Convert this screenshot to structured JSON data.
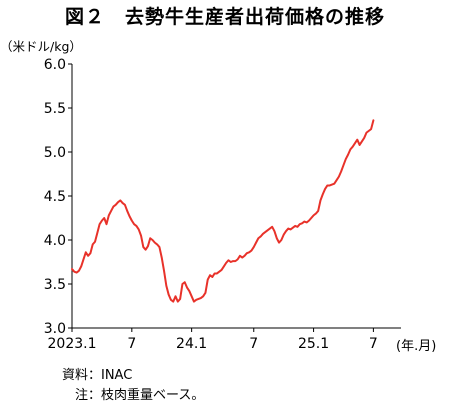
{
  "title": "図２　去勢牛生産者出荷価格の推移",
  "unit_label": "（米ドル/kg）",
  "x_unit_label": "(年.月)",
  "notes": [
    "資料：INAC",
    "　注：枝肉重量ベース。"
  ],
  "colors": {
    "line": "#e8322a",
    "axis": "#000000"
  },
  "chart_data": {
    "type": "line",
    "title": "図２　去勢牛生産者出荷価格の推移",
    "ylabel": "（米ドル/kg）",
    "xlabel": "(年.月)",
    "ylim": [
      3.0,
      6.0
    ],
    "xlim": [
      0,
      143
    ],
    "yticks": [
      3.0,
      3.5,
      4.0,
      4.5,
      5.0,
      5.5,
      6.0
    ],
    "ytick_labels": [
      "3.0",
      "3.5",
      "4.0",
      "4.5",
      "5.0",
      "5.5",
      "6.0"
    ],
    "xticks": [
      0,
      26,
      52,
      79,
      105,
      131
    ],
    "xtick_labels": [
      "2023.1",
      "7",
      "24.1",
      "7",
      "25.1",
      "7"
    ],
    "grid": false,
    "legend": "none",
    "series": [
      {
        "values": [
          3.67,
          3.64,
          3.63,
          3.65,
          3.7,
          3.78,
          3.86,
          3.82,
          3.85,
          3.95,
          3.98,
          4.08,
          4.18,
          4.22,
          4.25,
          4.18,
          4.28,
          4.33,
          4.38,
          4.4,
          4.43,
          4.45,
          4.42,
          4.4,
          4.33,
          4.27,
          4.22,
          4.18,
          4.16,
          4.12,
          4.05,
          3.92,
          3.89,
          3.93,
          4.02,
          4.0,
          3.97,
          3.95,
          3.92,
          3.8,
          3.65,
          3.48,
          3.38,
          3.32,
          3.3,
          3.36,
          3.3,
          3.33,
          3.5,
          3.52,
          3.46,
          3.42,
          3.36,
          3.3,
          3.32,
          3.33,
          3.34,
          3.36,
          3.4,
          3.55,
          3.6,
          3.58,
          3.62,
          3.62,
          3.64,
          3.66,
          3.7,
          3.74,
          3.77,
          3.75,
          3.76,
          3.76,
          3.78,
          3.82,
          3.8,
          3.82,
          3.85,
          3.86,
          3.88,
          3.92,
          3.97,
          4.02,
          4.04,
          4.07,
          4.09,
          4.11,
          4.13,
          4.15,
          4.1,
          4.02,
          3.97,
          4.0,
          4.06,
          4.1,
          4.13,
          4.12,
          4.14,
          4.16,
          4.15,
          4.18,
          4.19,
          4.21,
          4.2,
          4.22,
          4.25,
          4.28,
          4.3,
          4.33,
          4.45,
          4.52,
          4.58,
          4.62,
          4.62,
          4.63,
          4.64,
          4.68,
          4.72,
          4.78,
          4.85,
          4.92,
          4.97,
          5.03,
          5.06,
          5.1,
          5.14,
          5.08,
          5.12,
          5.16,
          5.22,
          5.24,
          5.26,
          5.36
        ]
      }
    ]
  }
}
